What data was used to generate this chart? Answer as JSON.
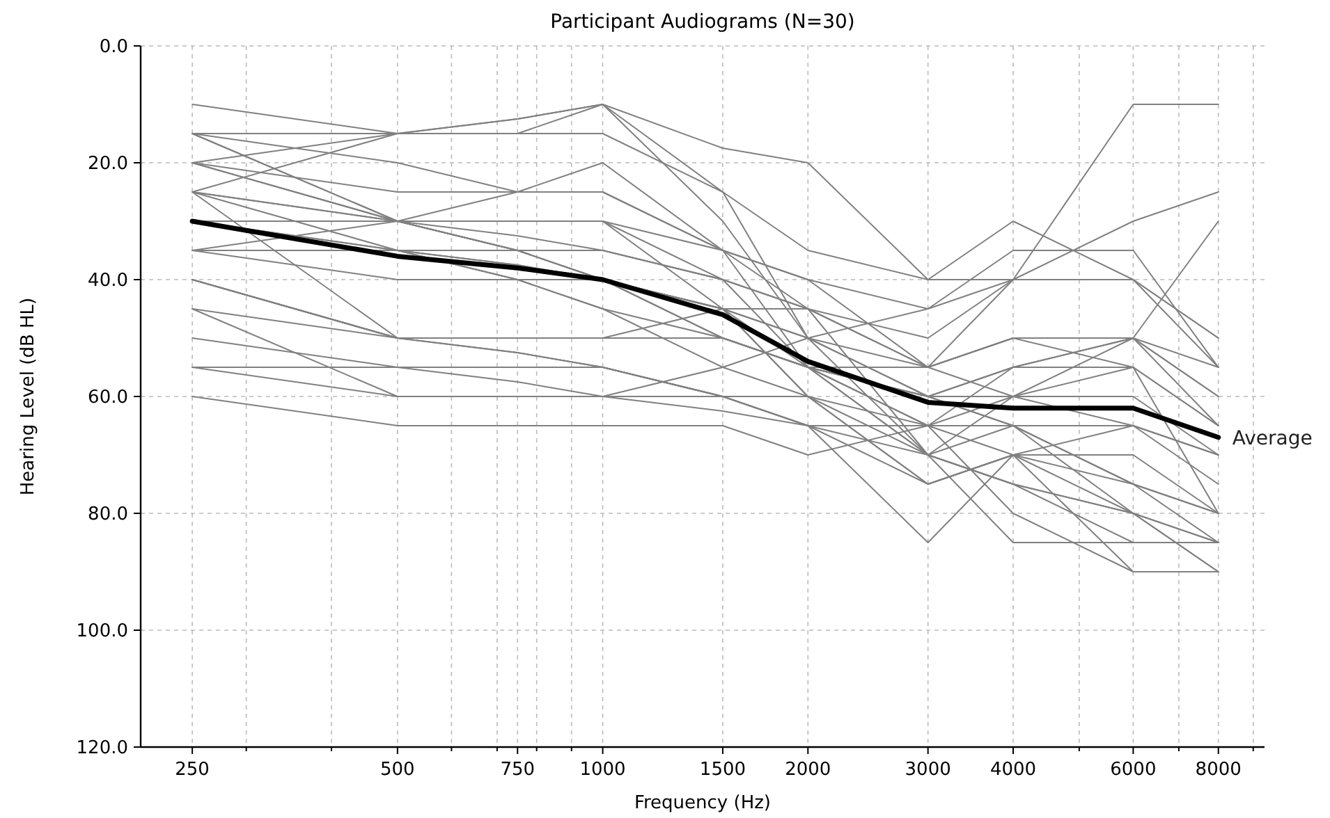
{
  "chart_data": {
    "type": "line",
    "title": "Participant Audiograms (N=30)",
    "xlabel": "Frequency (Hz)",
    "ylabel": "Hearing Level (dB HL)",
    "log": "x",
    "grid": true,
    "marker": "none",
    "line_style": "solid",
    "x": [
      250,
      500,
      750,
      1000,
      1500,
      2000,
      3000,
      4000,
      6000,
      8000
    ],
    "xlim": [
      210,
      9350
    ],
    "ylim": [
      120,
      0
    ],
    "xticks": [
      250,
      {
        "value": 300,
        "label": null
      },
      {
        "value": 400,
        "label": null
      },
      500,
      {
        "value": 600,
        "label": null
      },
      {
        "value": 700,
        "label": null
      },
      750,
      {
        "value": 800,
        "label": null
      },
      {
        "value": 900,
        "label": null
      },
      1000,
      1500,
      2000,
      3000,
      4000,
      {
        "value": 5000,
        "label": null
      },
      6000,
      {
        "value": 7000,
        "label": null
      },
      8000,
      {
        "value": 9000,
        "label": null
      }
    ],
    "yticks": [
      {
        "value": 0,
        "label": "0.0"
      },
      {
        "value": 20,
        "label": "20.0"
      },
      {
        "value": 40,
        "label": "40.0"
      },
      {
        "value": 60,
        "label": "60.0"
      },
      {
        "value": 80,
        "label": "80.0"
      },
      {
        "value": 100,
        "label": "100.0"
      },
      {
        "value": 120,
        "label": "120.0"
      }
    ],
    "series": [
      {
        "color": "#808080",
        "values": [
          10,
          15,
          12.5,
          10,
          17.5,
          20,
          40,
          30,
          40,
          55
        ]
      },
      {
        "color": "#808080",
        "values": [
          15,
          15,
          15,
          15,
          25,
          35,
          40,
          40,
          10,
          10
        ]
      },
      {
        "color": "#808080",
        "values": [
          15,
          20,
          25,
          25,
          35,
          40,
          55,
          40,
          30,
          25
        ]
      },
      {
        "color": "#808080",
        "values": [
          15,
          30,
          35,
          40,
          50,
          55,
          70,
          60,
          50,
          30
        ]
      },
      {
        "color": "#808080",
        "values": [
          20,
          15,
          15,
          10,
          30,
          50,
          60,
          55,
          55,
          65
        ]
      },
      {
        "color": "#808080",
        "values": [
          20,
          25,
          25,
          25,
          35,
          45,
          55,
          50,
          50,
          60
        ]
      },
      {
        "color": "#808080",
        "values": [
          20,
          30,
          32.5,
          35,
          40,
          45,
          50,
          40,
          40,
          50
        ]
      },
      {
        "color": "#808080",
        "values": [
          25,
          15,
          12.5,
          10,
          25,
          50,
          70,
          65,
          80,
          85
        ]
      },
      {
        "color": "#808080",
        "values": [
          25,
          30,
          35,
          40,
          45,
          50,
          55,
          60,
          65,
          70
        ]
      },
      {
        "color": "#808080",
        "values": [
          25,
          30,
          30,
          30,
          35,
          40,
          45,
          35,
          35,
          55
        ]
      },
      {
        "color": "#808080",
        "values": [
          25,
          35,
          40,
          45,
          55,
          60,
          75,
          70,
          75,
          80
        ]
      },
      {
        "color": "#808080",
        "values": [
          30,
          30,
          25,
          20,
          35,
          55,
          70,
          75,
          80,
          90
        ]
      },
      {
        "color": "#808080",
        "values": [
          30,
          35,
          37.5,
          40,
          45,
          60,
          65,
          65,
          65,
          70
        ]
      },
      {
        "color": "#808080",
        "values": [
          35,
          35,
          35,
          35,
          40,
          45,
          55,
          50,
          55,
          65
        ]
      },
      {
        "color": "#808080",
        "values": [
          35,
          40,
          40,
          40,
          50,
          55,
          65,
          55,
          50,
          55
        ]
      },
      {
        "color": "#808080",
        "values": [
          40,
          50,
          52.5,
          55,
          60,
          65,
          75,
          70,
          70,
          80
        ]
      },
      {
        "color": "#808080",
        "values": [
          40,
          50,
          50,
          50,
          50,
          55,
          60,
          65,
          75,
          85
        ]
      },
      {
        "color": "#808080",
        "values": [
          45,
          60,
          60,
          60,
          55,
          50,
          45,
          40,
          40,
          50
        ]
      },
      {
        "color": "#808080",
        "values": [
          50,
          55,
          57.5,
          60,
          62.5,
          65,
          70,
          75,
          80,
          85
        ]
      },
      {
        "color": "#808080",
        "values": [
          55,
          55,
          55,
          55,
          60,
          65,
          85,
          70,
          65,
          75
        ]
      },
      {
        "color": "#808080",
        "values": [
          55,
          60,
          60,
          60,
          60,
          65,
          65,
          60,
          55,
          80
        ]
      },
      {
        "color": "#808080",
        "values": [
          60,
          65,
          65,
          65,
          65,
          70,
          65,
          70,
          90,
          90
        ]
      },
      {
        "color": "#808080",
        "values": [
          35,
          30,
          30,
          30,
          45,
          60,
          75,
          70,
          80,
          90
        ]
      },
      {
        "color": "#808080",
        "values": [
          30,
          35,
          37.5,
          40,
          45,
          50,
          60,
          55,
          50,
          60
        ]
      },
      {
        "color": "#808080",
        "values": [
          25,
          50,
          52.5,
          55,
          60,
          60,
          70,
          75,
          85,
          85
        ]
      },
      {
        "color": "#808080",
        "values": [
          20,
          30,
          35,
          40,
          45,
          55,
          55,
          50,
          50,
          65
        ]
      },
      {
        "color": "#808080",
        "values": [
          40,
          50,
          50,
          50,
          50,
          55,
          65,
          80,
          90,
          90
        ]
      },
      {
        "color": "#808080",
        "values": [
          15,
          30,
          30,
          30,
          40,
          55,
          60,
          60,
          60,
          70
        ]
      },
      {
        "color": "#808080",
        "values": [
          45,
          50,
          50,
          50,
          45,
          45,
          70,
          85,
          85,
          85
        ]
      },
      {
        "color": "#808080",
        "values": [
          35,
          35,
          40,
          45,
          50,
          55,
          60,
          65,
          75,
          80
        ]
      },
      {
        "name": "Average",
        "color": "#000000",
        "values": [
          30,
          36,
          38,
          40,
          46,
          54,
          61,
          62,
          62,
          67
        ]
      }
    ]
  }
}
